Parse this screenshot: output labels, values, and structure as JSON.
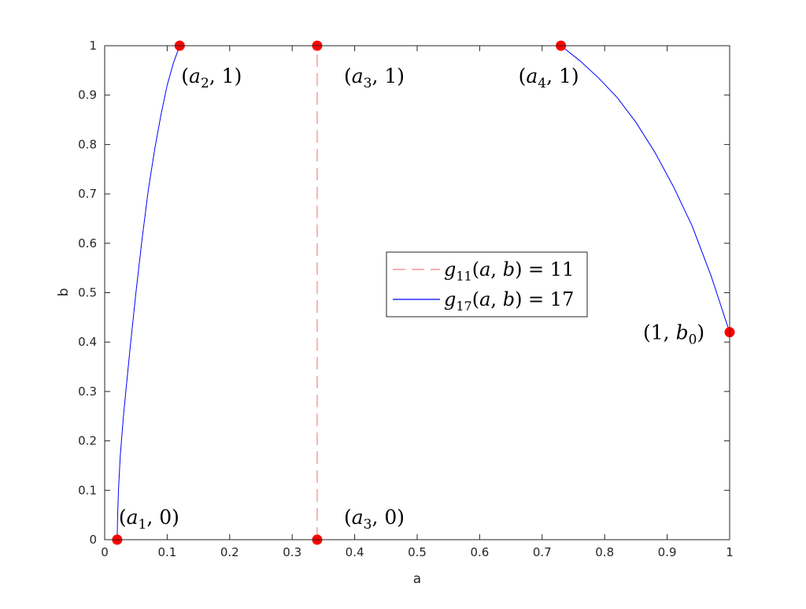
{
  "chart_data": {
    "type": "line",
    "title": "",
    "xlabel": "a",
    "ylabel": "b",
    "xlim": [
      0,
      1
    ],
    "ylim": [
      0,
      1
    ],
    "xticks": [
      0,
      0.1,
      0.2,
      0.3,
      0.4,
      0.5,
      0.6,
      0.7,
      0.8,
      0.9,
      1
    ],
    "yticks": [
      0,
      0.1,
      0.2,
      0.3,
      0.4,
      0.5,
      0.6,
      0.7,
      0.8,
      0.9,
      1
    ],
    "xtick_labels": [
      "0",
      "0.1",
      "0.2",
      "0.3",
      "0.4",
      "0.5",
      "0.6",
      "0.7",
      "0.8",
      "0.9",
      "1"
    ],
    "ytick_labels": [
      "0",
      "0.1",
      "0.2",
      "0.3",
      "0.4",
      "0.5",
      "0.6",
      "0.7",
      "0.8",
      "0.9",
      "1"
    ],
    "grid": false,
    "legend_position": "center",
    "series": [
      {
        "name": "g11(a,b) = 11",
        "color": "#ff7f7f",
        "style": "dashed",
        "x": [
          0.34,
          0.34
        ],
        "y": [
          0,
          1
        ]
      },
      {
        "name": "g17(a,b) = 17",
        "color": "#0000ff",
        "style": "solid",
        "segments": [
          {
            "x": [
              0.02,
              0.0205,
              0.022,
              0.025,
              0.03,
              0.04,
              0.05,
              0.06,
              0.07,
              0.08,
              0.09,
              0.1,
              0.11,
              0.12
            ],
            "y": [
              0,
              0.04,
              0.1,
              0.17,
              0.25,
              0.38,
              0.5,
              0.61,
              0.71,
              0.79,
              0.86,
              0.92,
              0.965,
              1
            ]
          },
          {
            "x": [
              0.73,
              0.76,
              0.79,
              0.82,
              0.85,
              0.88,
              0.91,
              0.94,
              0.97,
              1.0
            ],
            "y": [
              1,
              0.97,
              0.935,
              0.895,
              0.845,
              0.785,
              0.715,
              0.635,
              0.535,
              0.42
            ]
          }
        ]
      }
    ],
    "points": [
      {
        "x": 0.02,
        "y": 0,
        "label": "(a1, 0)"
      },
      {
        "x": 0.12,
        "y": 1,
        "label": "(a2, 1)"
      },
      {
        "x": 0.34,
        "y": 1,
        "label": "(a3, 1)"
      },
      {
        "x": 0.34,
        "y": 0,
        "label": "(a3, 0)"
      },
      {
        "x": 0.73,
        "y": 1,
        "label": "(a4, 1)"
      },
      {
        "x": 1.0,
        "y": 0.42,
        "label": "(1, b0)"
      }
    ],
    "point_color": "#ff0000",
    "legend": [
      {
        "name": "g11(a,b) = 11"
      },
      {
        "name": "g17(a,b) = 17"
      }
    ]
  }
}
